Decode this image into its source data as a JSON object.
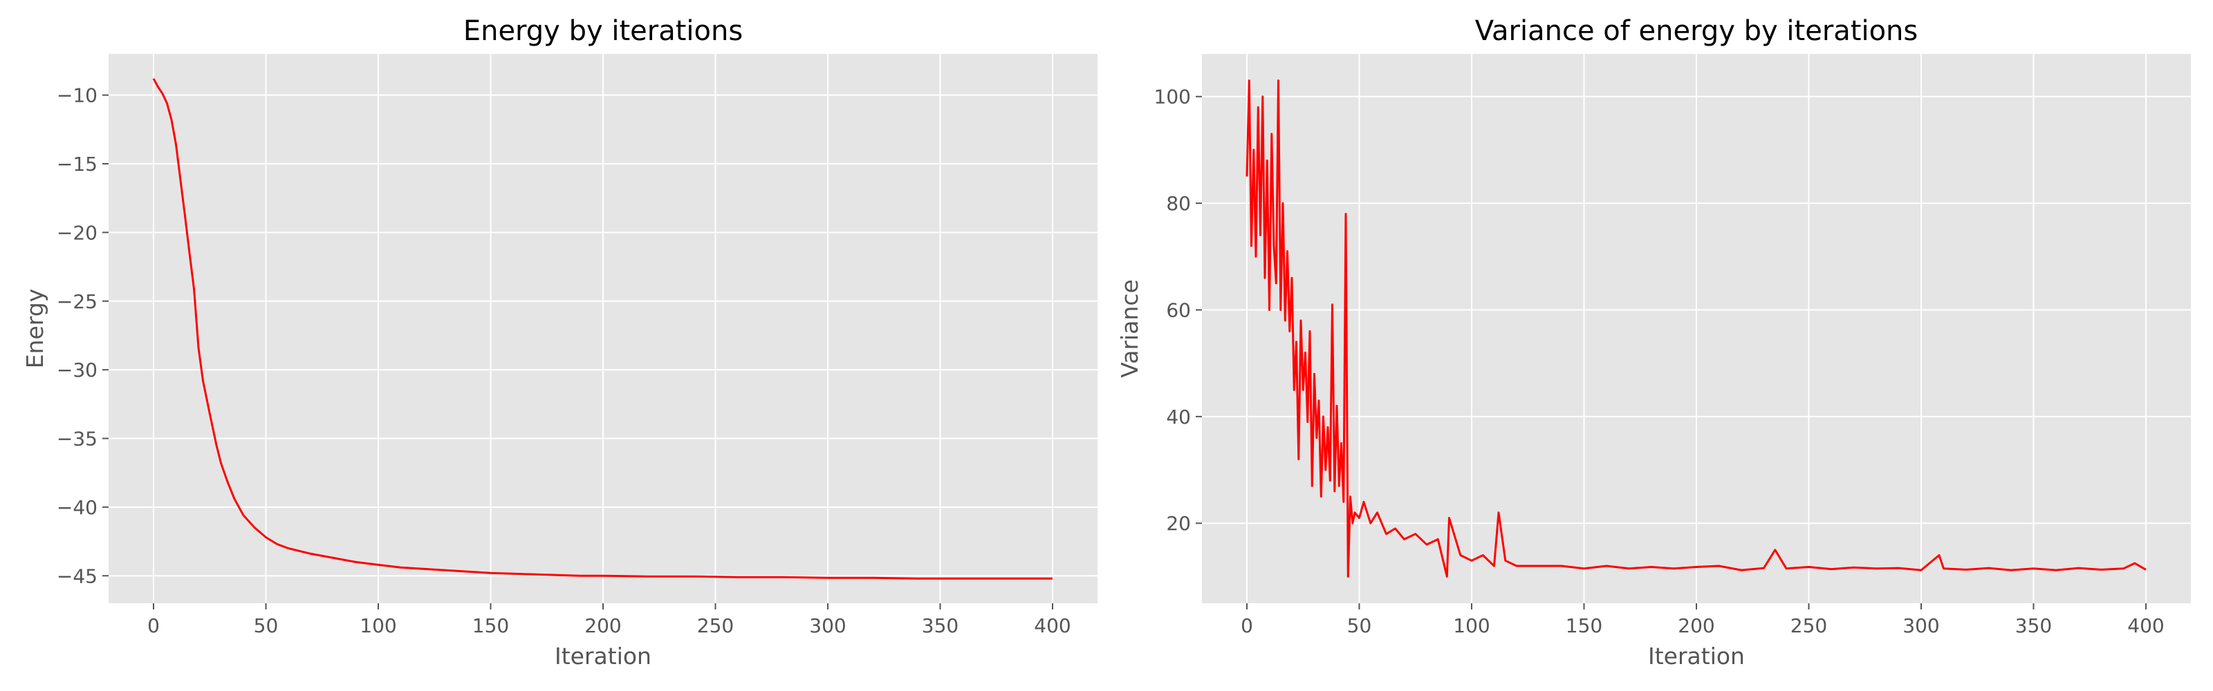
{
  "chart_data": [
    {
      "type": "line",
      "title": "Energy by iterations",
      "xlabel": "Iteration",
      "ylabel": "Energy",
      "xlim": [
        -20,
        420
      ],
      "ylim": [
        -47,
        -7
      ],
      "xticks": [
        0,
        50,
        100,
        150,
        200,
        250,
        300,
        350,
        400
      ],
      "yticks": [
        -45,
        -40,
        -35,
        -30,
        -25,
        -20,
        -15,
        -10
      ],
      "grid": true,
      "legend": "none",
      "style": "ggplot",
      "color": "#ff0000",
      "series": [
        {
          "x": [
            0,
            2,
            4,
            6,
            8,
            10,
            12,
            14,
            16,
            18,
            20,
            22,
            25,
            28,
            30,
            33,
            36,
            40,
            45,
            50,
            55,
            60,
            70,
            80,
            90,
            100,
            110,
            120,
            130,
            140,
            150,
            160,
            170,
            180,
            190,
            200,
            220,
            240,
            260,
            280,
            300,
            320,
            340,
            360,
            380,
            400
          ],
          "y": [
            -8.8,
            -9.4,
            -9.9,
            -10.6,
            -11.8,
            -13.6,
            -16.2,
            -18.8,
            -21.5,
            -24.1,
            -28.4,
            -30.8,
            -33.2,
            -35.5,
            -36.8,
            -38.2,
            -39.4,
            -40.6,
            -41.5,
            -42.2,
            -42.7,
            -43.0,
            -43.4,
            -43.7,
            -44.0,
            -44.2,
            -44.4,
            -44.5,
            -44.6,
            -44.7,
            -44.8,
            -44.85,
            -44.9,
            -44.95,
            -45.0,
            -45.0,
            -45.05,
            -45.05,
            -45.1,
            -45.1,
            -45.15,
            -45.15,
            -45.2,
            -45.2,
            -45.2,
            -45.2
          ]
        }
      ]
    },
    {
      "type": "line",
      "title": "Variance of energy by iterations",
      "xlabel": "Iteration",
      "ylabel": "Variance",
      "xlim": [
        -20,
        420
      ],
      "ylim": [
        5,
        108
      ],
      "xticks": [
        0,
        50,
        100,
        150,
        200,
        250,
        300,
        350,
        400
      ],
      "yticks": [
        20,
        40,
        60,
        80,
        100
      ],
      "grid": true,
      "legend": "none",
      "style": "ggplot",
      "color": "#ff0000",
      "series": [
        {
          "x": [
            0,
            1,
            2,
            3,
            4,
            5,
            6,
            7,
            8,
            9,
            10,
            11,
            12,
            13,
            14,
            15,
            16,
            17,
            18,
            19,
            20,
            21,
            22,
            23,
            24,
            25,
            26,
            27,
            28,
            29,
            30,
            31,
            32,
            33,
            34,
            35,
            36,
            37,
            38,
            39,
            40,
            41,
            42,
            43,
            44,
            45,
            46,
            47,
            48,
            50,
            52,
            55,
            58,
            62,
            66,
            70,
            75,
            80,
            85,
            89,
            90,
            95,
            100,
            105,
            110,
            112,
            115,
            120,
            130,
            140,
            150,
            160,
            170,
            180,
            190,
            200,
            210,
            220,
            230,
            235,
            240,
            250,
            260,
            270,
            280,
            290,
            300,
            308,
            310,
            320,
            330,
            340,
            350,
            360,
            370,
            380,
            390,
            395,
            400
          ],
          "y": [
            85,
            103,
            72,
            90,
            70,
            98,
            74,
            100,
            66,
            88,
            60,
            93,
            72,
            65,
            103,
            60,
            80,
            58,
            71,
            56,
            66,
            45,
            54,
            32,
            58,
            45,
            52,
            39,
            56,
            27,
            48,
            36,
            43,
            25,
            40,
            30,
            38,
            28,
            61,
            26,
            42,
            27,
            35,
            24,
            78,
            10,
            25,
            20,
            22,
            21,
            24,
            20,
            22,
            18,
            19,
            17,
            18,
            16,
            17,
            10,
            21,
            14,
            13,
            14,
            12,
            22,
            13,
            12,
            12,
            12,
            11.5,
            12,
            11.5,
            11.8,
            11.5,
            11.8,
            12,
            11.2,
            11.6,
            15,
            11.5,
            11.8,
            11.4,
            11.7,
            11.5,
            11.6,
            11.2,
            14,
            11.5,
            11.3,
            11.6,
            11.2,
            11.5,
            11.2,
            11.6,
            11.3,
            11.5,
            12.5,
            11.3
          ]
        }
      ]
    }
  ]
}
